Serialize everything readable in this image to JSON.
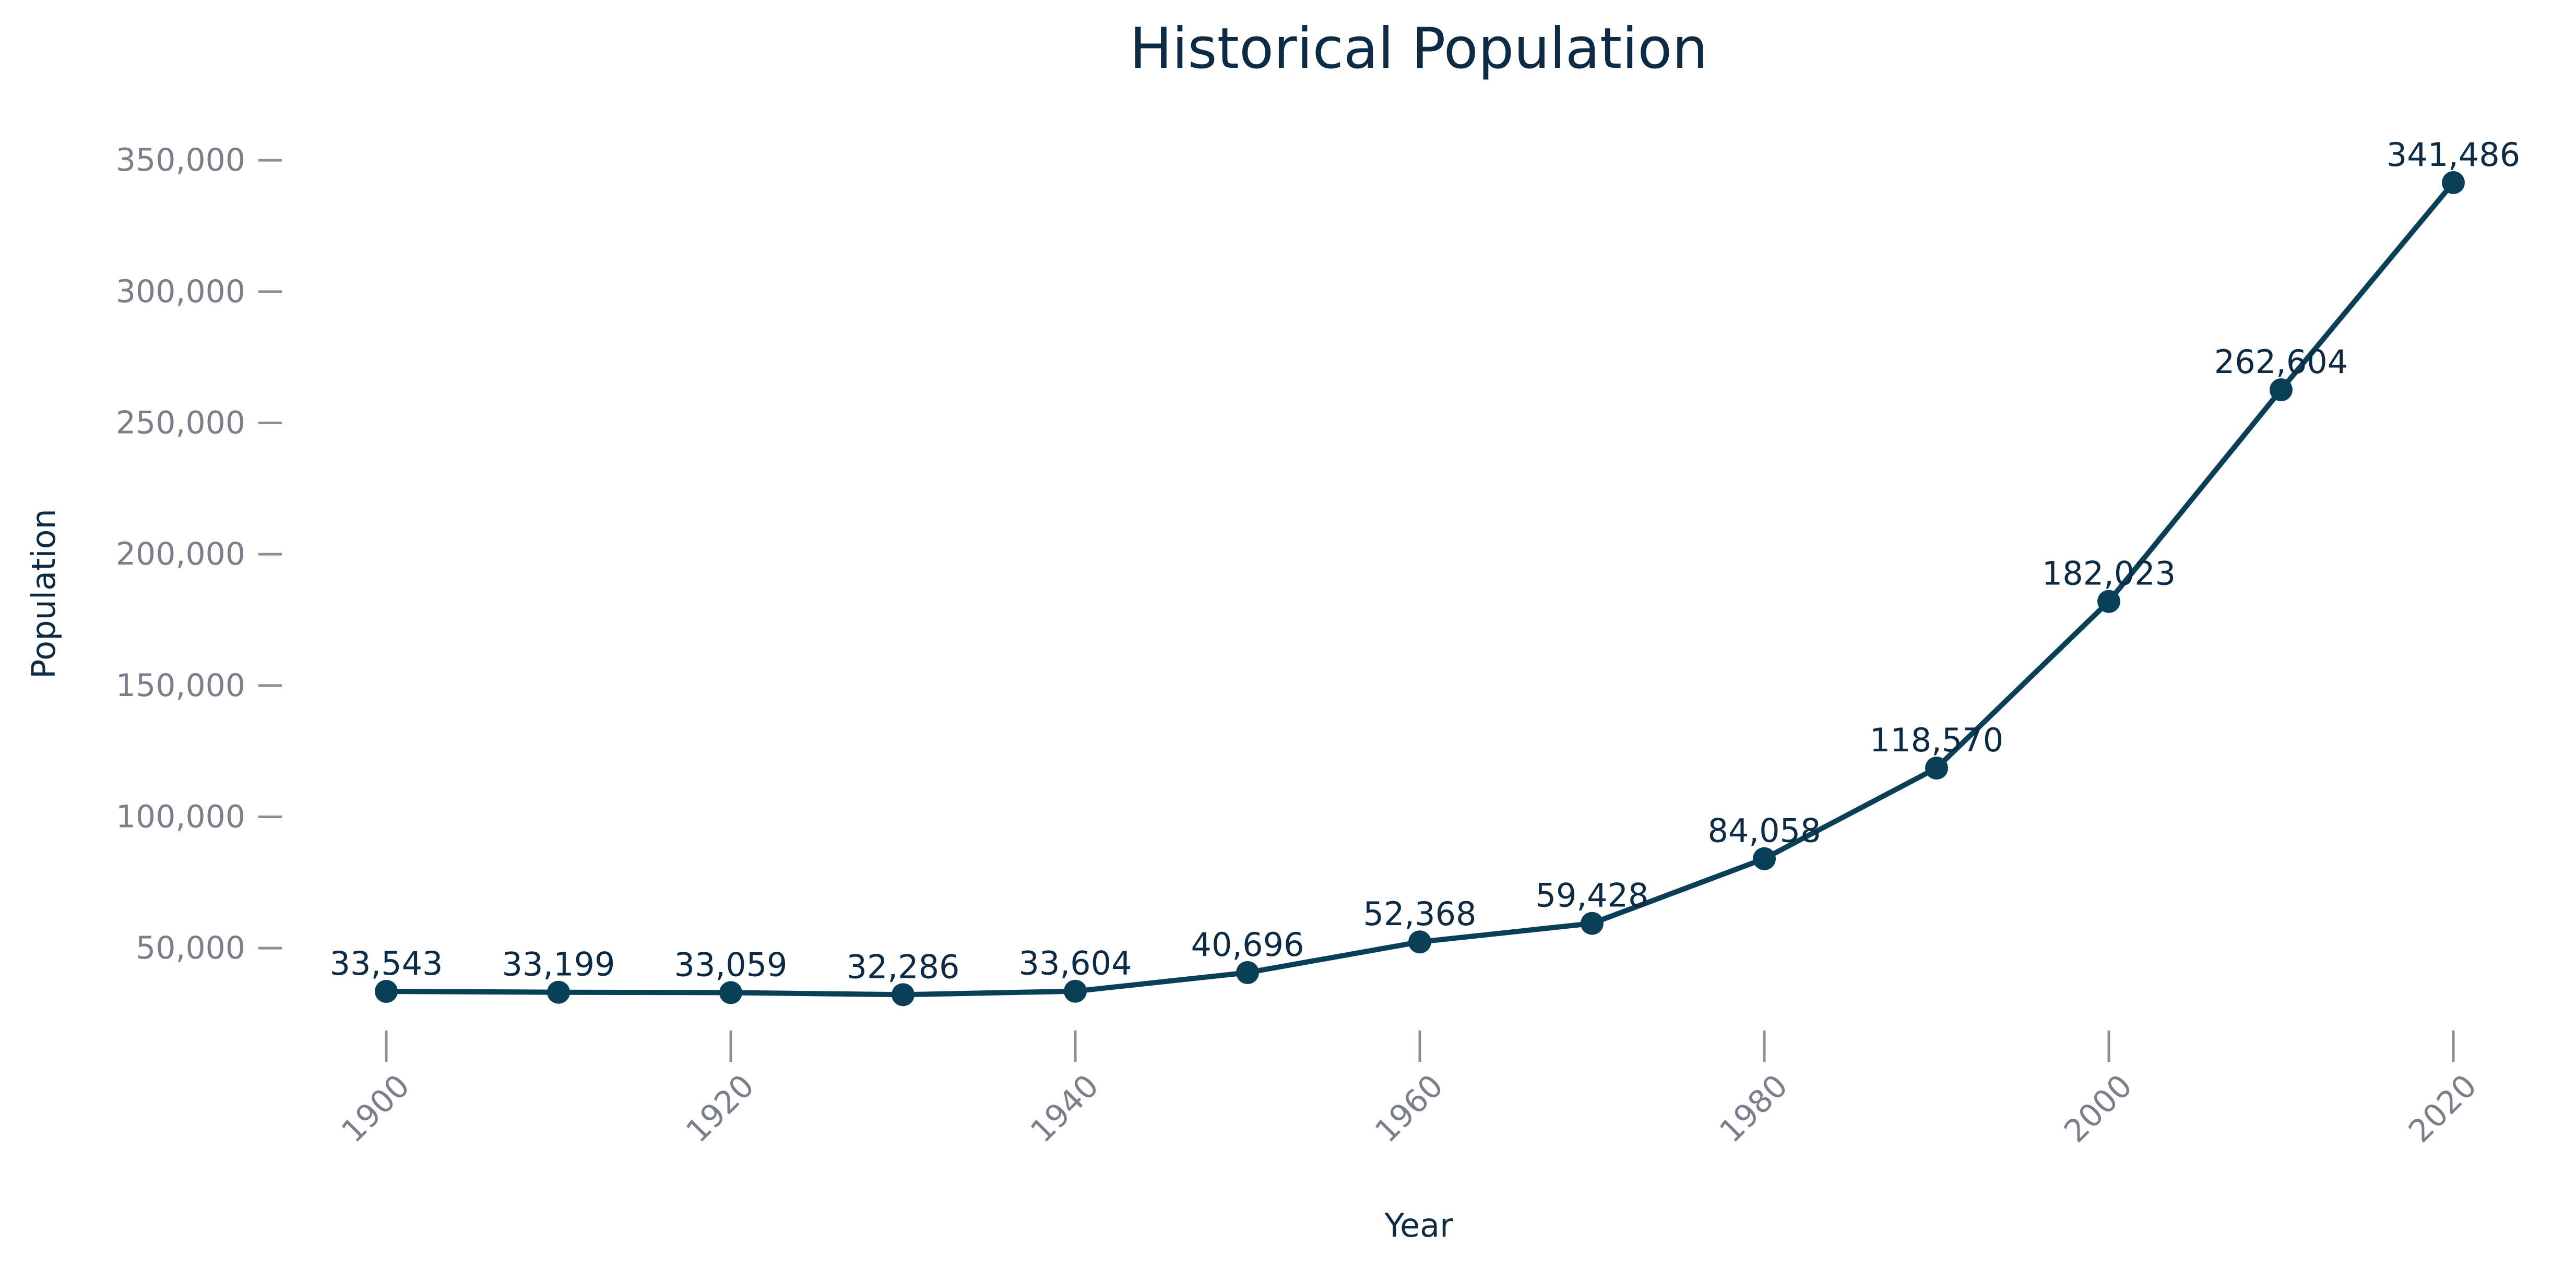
{
  "chart_data": {
    "type": "line",
    "title": "Historical Population",
    "xlabel": "Year",
    "ylabel": "Population",
    "x": [
      1900,
      1910,
      1920,
      1930,
      1940,
      1950,
      1960,
      1970,
      1980,
      1990,
      2000,
      2010,
      2020
    ],
    "values": [
      33543,
      33199,
      33059,
      32286,
      33604,
      40696,
      52368,
      59428,
      84058,
      118570,
      182023,
      262604,
      341486
    ],
    "data_labels": [
      "33,543",
      "33,199",
      "33,059",
      "32,286",
      "33,604",
      "40,696",
      "52,368",
      "59,428",
      "84,058",
      "118,570",
      "182,023",
      "262,604",
      "341,486"
    ],
    "x_ticks": [
      1900,
      1920,
      1940,
      1960,
      1980,
      2000,
      2020
    ],
    "x_tick_labels": [
      "1900",
      "1920",
      "1940",
      "1960",
      "1980",
      "2000",
      "2020"
    ],
    "y_ticks": [
      50000,
      100000,
      150000,
      200000,
      250000,
      300000,
      350000
    ],
    "y_tick_labels": [
      "50,000",
      "100,000",
      "150,000",
      "200,000",
      "250,000",
      "300,000",
      "350,000"
    ],
    "xlim": [
      1900,
      2020
    ],
    "ylim": [
      33543,
      341486
    ],
    "grid": false,
    "legend": "none",
    "colors": {
      "series": "#0a4057",
      "title": "#0d2b45",
      "ticks": "#7a7f8a"
    }
  }
}
